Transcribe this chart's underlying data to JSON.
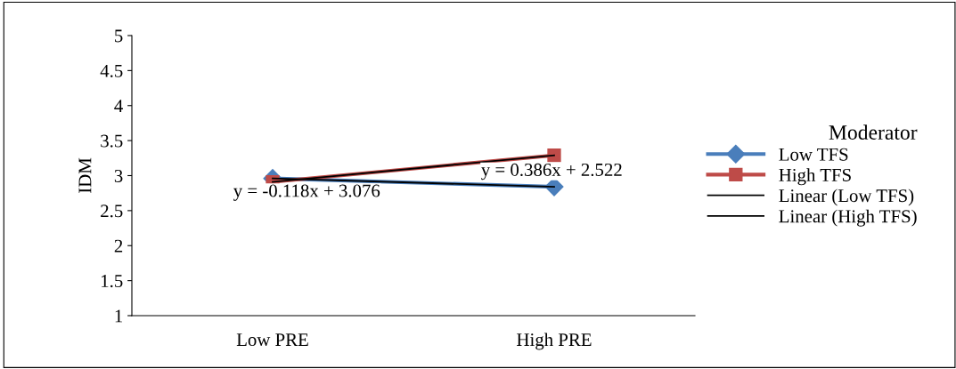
{
  "chart_data": {
    "type": "line",
    "ylabel": "IDM",
    "categories": [
      "Low PRE",
      "High PRE"
    ],
    "series": [
      {
        "name": "Low TFS",
        "color": "#4a7ebb",
        "values": [
          2.96,
          2.84
        ],
        "marker": "diamond"
      },
      {
        "name": "High TFS",
        "color": "#be4b48",
        "values": [
          2.91,
          3.29
        ],
        "marker": "square"
      },
      {
        "name": "Linear (Low TFS)",
        "color": "#000000",
        "values": [
          2.96,
          2.84
        ],
        "marker": "none"
      },
      {
        "name": "Linear (High TFS)",
        "color": "#000000",
        "values": [
          2.91,
          3.29
        ],
        "marker": "none"
      }
    ],
    "ylim": [
      1,
      5
    ],
    "yticks": [
      1,
      1.5,
      2,
      2.5,
      3,
      3.5,
      4,
      4.5,
      5
    ],
    "grid": false,
    "legend": "right",
    "legend_title": "Moderator",
    "annotations": [
      "y = -0.118x + 3.076",
      "y = 0.386x + 2.522"
    ]
  }
}
